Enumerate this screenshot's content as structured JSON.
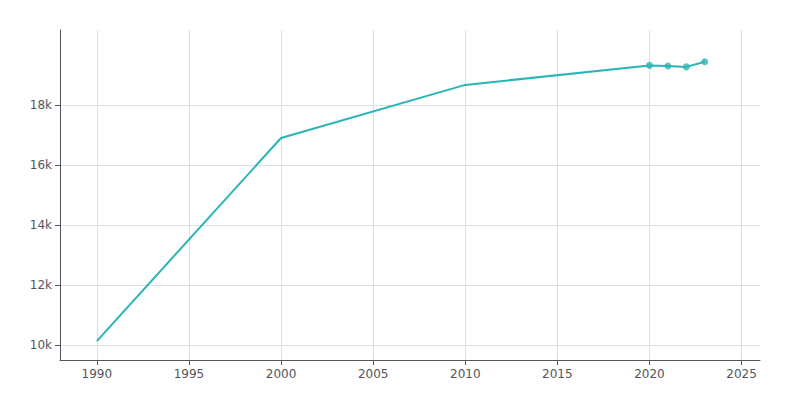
{
  "chart_data": {
    "type": "line",
    "x": [
      1990,
      2000,
      2010,
      2020,
      2021,
      2022,
      2023
    ],
    "series": [
      {
        "type": "line",
        "color": "#2ab5b5",
        "marker": "none",
        "values": [
          10130,
          16900,
          18670,
          19320,
          19300,
          19270,
          19440
        ]
      },
      {
        "type": "scatter",
        "color": "#2ab5b5",
        "marker": "circle",
        "x": [
          2020,
          2021,
          2022,
          2023
        ],
        "values": [
          19320,
          19300,
          19270,
          19440
        ]
      }
    ],
    "xlim": [
      1988,
      2026
    ],
    "ylim": [
      9500,
      20500
    ],
    "xticks": [
      1990,
      1995,
      2000,
      2005,
      2010,
      2015,
      2020,
      2025
    ],
    "yticks": [
      {
        "value": 10000,
        "label": "10k"
      },
      {
        "value": 12000,
        "label": "12k"
      },
      {
        "value": 14000,
        "label": "14k"
      },
      {
        "value": 16000,
        "label": "16k"
      },
      {
        "value": 18000,
        "label": "18k"
      }
    ],
    "grid": true
  }
}
